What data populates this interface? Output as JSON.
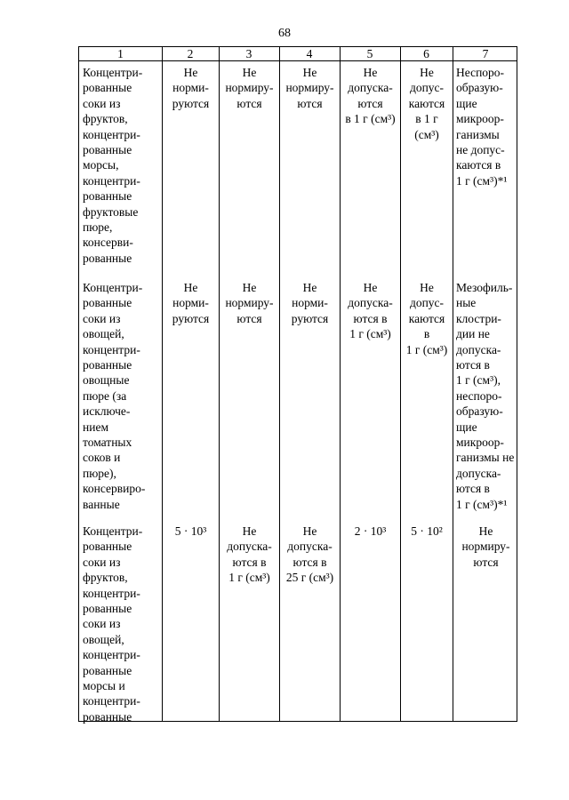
{
  "page_number": "68",
  "table": {
    "headers": [
      "1",
      "2",
      "3",
      "4",
      "5",
      "6",
      "7"
    ],
    "rows": [
      {
        "cells": [
          "Концентри-\nрованные\nсоки из\nфруктов,\nконцентри-\nрованные\nморсы,\nконцентри-\nрованные\nфруктовые\nпюре,\nконсерви-\nрованные",
          "Не\nнорми-\nруются",
          "Не\nнормиру-\nются",
          "Не\nнормиру-\nются",
          "Не\nдопуска-\nются\nв 1 г (см³)",
          "Не\nдопус-\nкаются\nв 1 г\n(см³)",
          "Неспоро-\nобразую-\nщие\nмикроор-\nганизмы\nне допус-\nкаются в\n1 г (см³)*¹"
        ]
      },
      {
        "cells": [
          "Концентри-\nрованные\nсоки из\nовощей,\nконцентри-\nрованные\nовощные\nпюре (за\nисключе-\nнием\nтоматных\nсоков и\nпюре),\nконсервиро-\nванные",
          "Не\nнорми-\nруются",
          "Не\nнормиру-\nются",
          "Не\nнорми-\nруются",
          "Не\nдопуска-\nются в\n1 г (см³)",
          "Не\nдопус-\nкаются\nв\n1 г (см³)",
          "Мезофиль-\nные\nклостри-\nдии не\nдопуска-\nются в\n1 г (см³),\nнеспоро-\nобразую-\nщие\nмикроор-\nганизмы не\nдопуска-\nются в\n1 г (см³)*¹"
        ]
      },
      {
        "cells": [
          "Концентри-\nрованные\nсоки из\nфруктов,\nконцентри-\nрованные\nсоки из\nовощей,\nконцентри-\nрованные\nморсы и\nконцентри-\nрованные",
          "5 · 10³",
          "Не\nдопуска-\nются в\n1 г (см³)",
          "Не\nдопуска-\nются в\n25 г (см³)",
          "2 · 10³",
          "5 · 10²",
          "Не\nнормиру-\nются"
        ]
      }
    ]
  }
}
